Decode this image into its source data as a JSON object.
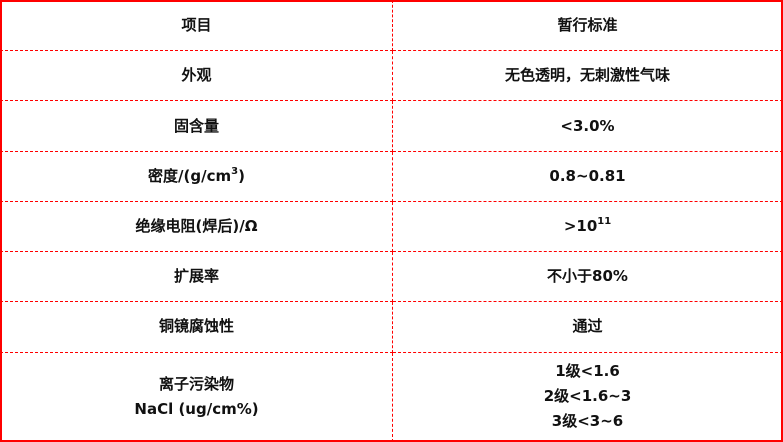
{
  "table": {
    "headers": [
      "项目",
      "暂行标准"
    ],
    "rows": [
      {
        "item": "外观",
        "standard": "无色透明，无刺激性气味"
      },
      {
        "item": "固含量",
        "standard": "<3.0%"
      },
      {
        "item": "密度/(g/cm",
        "item_sup": "3",
        "item_suffix": ")",
        "standard": "0.8~0.81"
      },
      {
        "item": "绝缘电阻(焊后)/Ω",
        "standard": ">10",
        "standard_sup": "11"
      },
      {
        "item": "扩展率",
        "standard": "不小于80%"
      },
      {
        "item": "铜镜腐蚀性",
        "standard": "通过"
      },
      {
        "item_lines": [
          "离子污染物",
          "NaCl (ug/cm%)"
        ],
        "standard_lines": [
          "1级<1.6",
          "2级<1.6~3",
          "3级<3~6"
        ]
      }
    ]
  },
  "colors": {
    "border": "#ff0000",
    "text": "#111111"
  }
}
